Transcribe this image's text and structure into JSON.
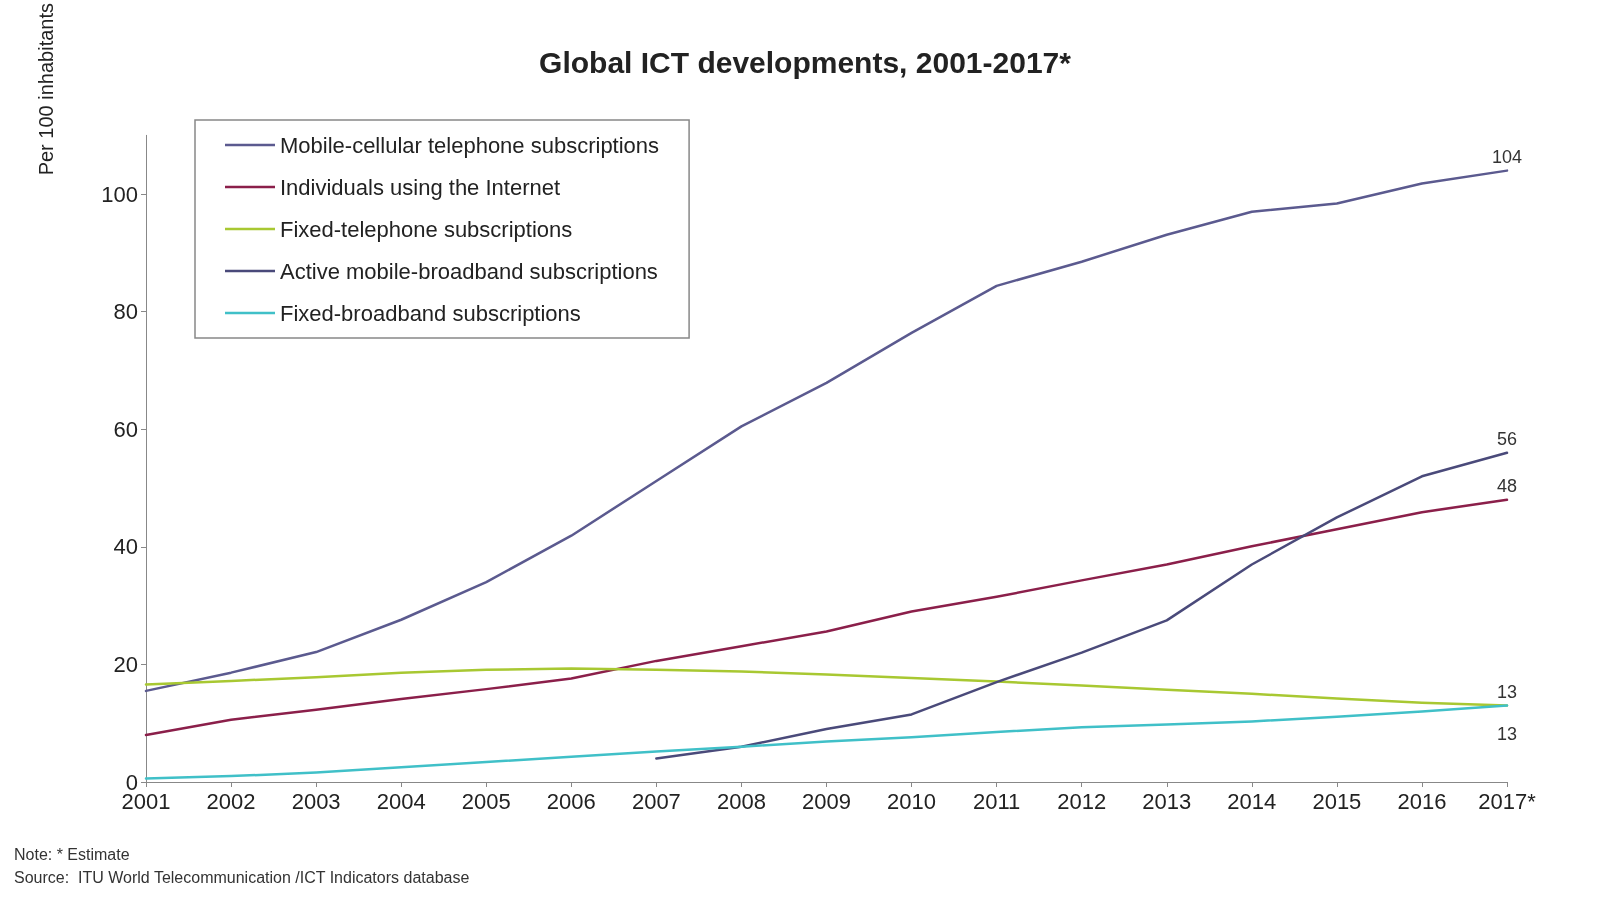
{
  "chart_data": {
    "type": "line",
    "title": "Global ICT developments, 2001-2017*",
    "ylabel": "Per 100 inhabitants",
    "categories": [
      "2001",
      "2002",
      "2003",
      "2004",
      "2005",
      "2006",
      "2007",
      "2008",
      "2009",
      "2010",
      "2011",
      "2012",
      "2013",
      "2014",
      "2015",
      "2016",
      "2017*"
    ],
    "series": [
      {
        "name": "Mobile-cellular telephone subscriptions",
        "color": "#5b5a8f",
        "values": [
          15.5,
          18.6,
          22.1,
          27.6,
          34,
          41.9,
          51.2,
          60.5,
          67.9,
          76.4,
          84.4,
          88.5,
          93.1,
          97,
          98.4,
          101.8,
          104
        ],
        "value_labels": [
          null,
          null,
          null,
          null,
          null,
          null,
          null,
          null,
          null,
          null,
          null,
          null,
          null,
          null,
          null,
          null,
          "104"
        ]
      },
      {
        "name": "Individuals using the Internet",
        "color": "#8b1f4a",
        "values": [
          8,
          10.6,
          12.3,
          14.1,
          15.8,
          17.6,
          20.6,
          23.1,
          25.6,
          29,
          31.5,
          34.3,
          37,
          40.1,
          43,
          45.9,
          48
        ],
        "value_labels": [
          null,
          null,
          null,
          null,
          null,
          null,
          null,
          null,
          null,
          null,
          null,
          null,
          null,
          null,
          null,
          null,
          "48"
        ]
      },
      {
        "name": "Fixed-telephone subscriptions",
        "color": "#a8c832",
        "values": [
          16.6,
          17.2,
          17.8,
          18.6,
          19.1,
          19.3,
          19.1,
          18.8,
          18.3,
          17.7,
          17.1,
          16.4,
          15.7,
          15,
          14.2,
          13.5,
          13
        ],
        "value_labels": [
          null,
          null,
          null,
          null,
          null,
          null,
          null,
          null,
          null,
          null,
          null,
          null,
          null,
          null,
          null,
          null,
          "13"
        ]
      },
      {
        "name": "Active mobile-broadband subscriptions",
        "color": "#4a4a7a",
        "values": [
          null,
          null,
          null,
          null,
          null,
          null,
          4,
          6,
          9,
          11.5,
          17,
          22,
          27.5,
          37,
          45,
          52,
          56
        ],
        "value_labels": [
          null,
          null,
          null,
          null,
          null,
          null,
          null,
          null,
          null,
          null,
          null,
          null,
          null,
          null,
          null,
          null,
          "56"
        ]
      },
      {
        "name": "Fixed-broadband subscriptions",
        "color": "#40c0c8",
        "values": [
          0.6,
          1,
          1.6,
          2.5,
          3.4,
          4.3,
          5.2,
          6,
          6.9,
          7.6,
          8.5,
          9.3,
          9.8,
          10.3,
          11.1,
          12,
          13
        ],
        "value_labels": [
          null,
          null,
          null,
          null,
          null,
          null,
          null,
          null,
          null,
          null,
          null,
          null,
          null,
          null,
          null,
          null,
          "13"
        ]
      }
    ],
    "ylim": [
      0,
      110
    ],
    "yticks": [
      0,
      20,
      40,
      60,
      80,
      100
    ],
    "grid": false,
    "legend": "top left",
    "marker": "none",
    "line_style": "solid",
    "annotations": [
      "Note: * Estimate",
      "Source:  ITU World Telecommunication /ICT Indicators database"
    ]
  }
}
